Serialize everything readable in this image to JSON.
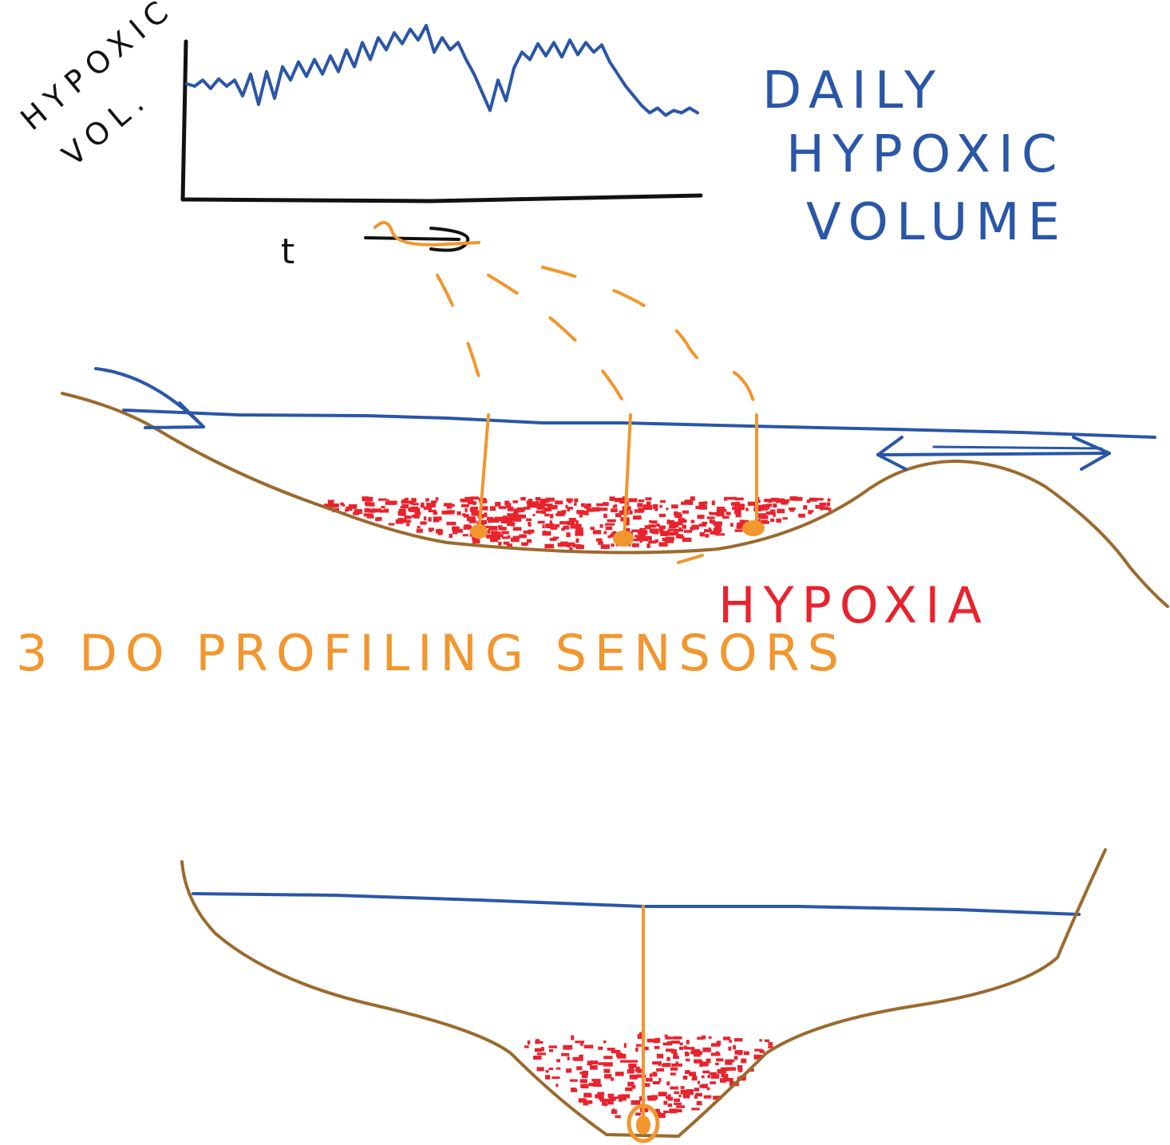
{
  "labels": {
    "y_axis_line1": "HYPOXIC",
    "y_axis_line2": "VOL.",
    "x_axis": "t",
    "title_line1": "DAILY",
    "title_line2": "HYPOXIC",
    "title_line3": "VOLUME",
    "hypoxia": "HYPOXIA",
    "sensors": "3 DO PROFILING SENSORS"
  },
  "colors": {
    "water": "#2a56a8",
    "bed": "#9b6a2e",
    "sensor": "#f2962e",
    "hypoxia": "#e8232e",
    "axis": "#111111"
  },
  "icons": [
    "right-arrow-icon",
    "double-headed-arrow-icon"
  ],
  "chart_data": {
    "type": "line",
    "xlabel": "t",
    "ylabel": "HYPOXIC VOL.",
    "title": "DAILY HYPOXIC VOLUME",
    "grid": false,
    "series": [
      {
        "values": [
          0.52,
          0.5,
          0.55,
          0.48,
          0.56,
          0.5,
          0.55,
          0.42,
          0.6,
          0.35,
          0.62,
          0.4,
          0.66,
          0.55,
          0.7,
          0.58,
          0.72,
          0.6,
          0.75,
          0.62,
          0.8,
          0.66,
          0.86,
          0.72,
          0.9,
          0.8,
          0.94,
          0.85,
          0.97,
          0.88,
          1.0,
          0.78,
          0.9,
          0.8,
          0.86,
          0.72,
          0.6,
          0.45,
          0.3,
          0.55,
          0.38,
          0.65,
          0.78,
          0.72,
          0.85,
          0.75,
          0.86,
          0.74,
          0.88,
          0.76,
          0.86,
          0.78,
          0.84,
          0.7,
          0.6,
          0.5,
          0.42,
          0.34,
          0.28,
          0.32,
          0.26,
          0.3,
          0.28,
          0.32,
          0.28
        ]
      }
    ]
  }
}
